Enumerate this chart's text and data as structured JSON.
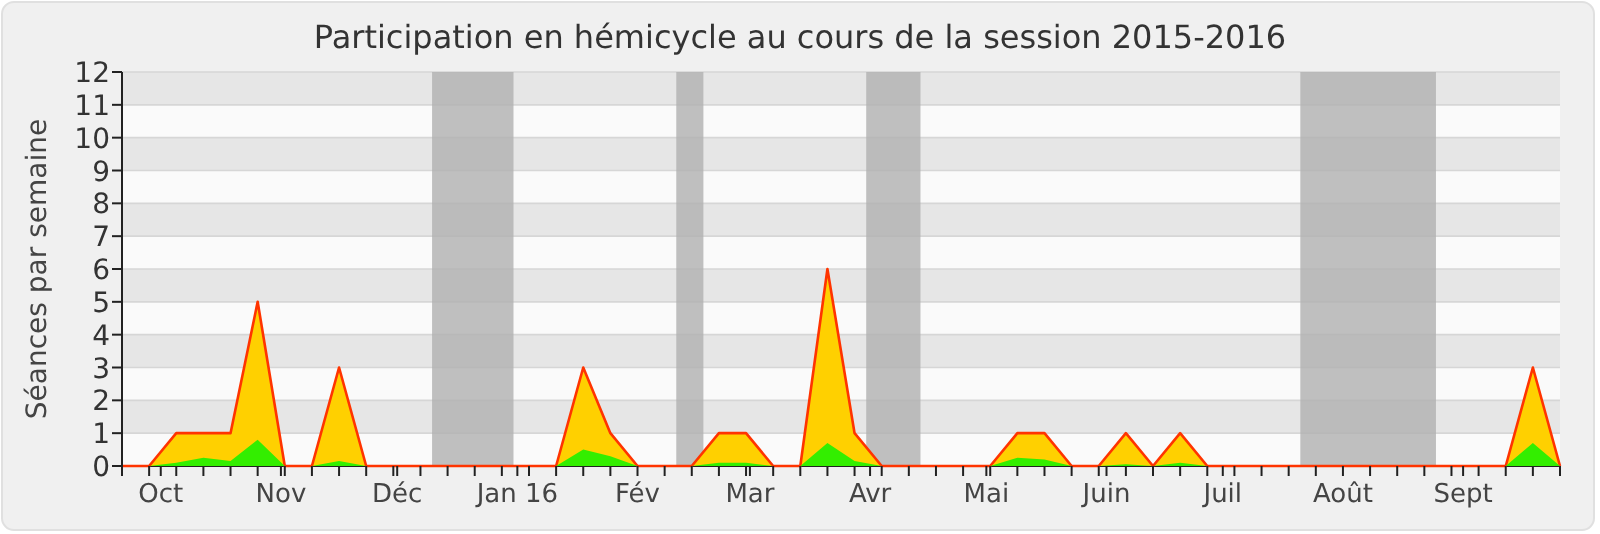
{
  "chart_data": {
    "type": "area",
    "title": "Participation en hémicycle au cours de la session 2015-2016",
    "ylabel": "Séances par semaine",
    "x": [
      "2015-09-21",
      "2015-09-28",
      "2015-10-05",
      "2015-10-12",
      "2015-10-19",
      "2015-10-26",
      "2015-11-02",
      "2015-11-09",
      "2015-11-16",
      "2015-11-23",
      "2015-11-30",
      "2015-12-07",
      "2015-12-14",
      "2015-12-21",
      "2015-12-28",
      "2016-01-04",
      "2016-01-11",
      "2016-01-18",
      "2016-01-25",
      "2016-02-01",
      "2016-02-08",
      "2016-02-15",
      "2016-02-22",
      "2016-02-29",
      "2016-03-07",
      "2016-03-14",
      "2016-03-21",
      "2016-03-28",
      "2016-04-04",
      "2016-04-11",
      "2016-04-18",
      "2016-04-25",
      "2016-05-02",
      "2016-05-09",
      "2016-05-16",
      "2016-05-23",
      "2016-05-30",
      "2016-06-06",
      "2016-06-13",
      "2016-06-20",
      "2016-06-27",
      "2016-07-04",
      "2016-07-11",
      "2016-07-18",
      "2016-07-25",
      "2016-08-01",
      "2016-08-08",
      "2016-08-15",
      "2016-08-22",
      "2016-08-29",
      "2016-09-05",
      "2016-09-12",
      "2016-09-19",
      "2016-09-26"
    ],
    "series": [
      {
        "color": "#ffd000",
        "values": [
          0,
          0,
          1,
          1,
          1,
          5,
          0,
          0,
          3,
          0,
          0,
          0,
          0,
          0,
          0,
          0,
          0,
          3,
          1,
          0,
          0,
          0,
          1,
          1,
          0,
          0,
          6,
          1,
          0,
          0,
          0,
          0,
          0,
          1,
          1,
          0,
          0,
          1,
          0,
          1,
          0,
          0,
          0,
          0,
          0,
          0,
          0,
          0,
          0,
          0,
          0,
          0,
          3,
          0
        ]
      },
      {
        "color": "#33ee00",
        "values": [
          0,
          0,
          0.1,
          0.25,
          0.15,
          0.8,
          0,
          0,
          0.15,
          0,
          0,
          0,
          0,
          0,
          0,
          0,
          0,
          0.5,
          0.3,
          0,
          0,
          0,
          0.1,
          0.1,
          0,
          0,
          0.7,
          0.15,
          0,
          0,
          0,
          0,
          0,
          0.25,
          0.2,
          0,
          0,
          0.05,
          0,
          0.1,
          0,
          0,
          0,
          0,
          0,
          0,
          0,
          0,
          0,
          0,
          0,
          0,
          0.7,
          0
        ]
      }
    ],
    "xlim": [
      "2015-09-21",
      "2016-09-26"
    ],
    "xticks": [
      {
        "value": "2015-09-21",
        "label": null
      },
      {
        "value": "2015-09-28",
        "label": null
      },
      {
        "value": "2015-10-01",
        "label": "Oct"
      },
      {
        "value": "2015-10-05",
        "label": null
      },
      {
        "value": "2015-10-12",
        "label": null
      },
      {
        "value": "2015-10-19",
        "label": null
      },
      {
        "value": "2015-10-26",
        "label": null
      },
      {
        "value": "2015-11-01",
        "label": "Nov"
      },
      {
        "value": "2015-11-02",
        "label": null
      },
      {
        "value": "2015-11-09",
        "label": null
      },
      {
        "value": "2015-11-16",
        "label": null
      },
      {
        "value": "2015-11-23",
        "label": null
      },
      {
        "value": "2015-11-30",
        "label": null
      },
      {
        "value": "2015-12-01",
        "label": "Déc"
      },
      {
        "value": "2015-12-07",
        "label": null
      },
      {
        "value": "2015-12-14",
        "label": null
      },
      {
        "value": "2015-12-21",
        "label": null
      },
      {
        "value": "2015-12-28",
        "label": null
      },
      {
        "value": "2016-01-01",
        "label": "Jan 16"
      },
      {
        "value": "2016-01-04",
        "label": null
      },
      {
        "value": "2016-01-11",
        "label": null
      },
      {
        "value": "2016-01-18",
        "label": null
      },
      {
        "value": "2016-01-25",
        "label": null
      },
      {
        "value": "2016-02-01",
        "label": "Fév"
      },
      {
        "value": "2016-02-08",
        "label": null
      },
      {
        "value": "2016-02-15",
        "label": null
      },
      {
        "value": "2016-02-22",
        "label": null
      },
      {
        "value": "2016-02-29",
        "label": null
      },
      {
        "value": "2016-03-01",
        "label": "Mar"
      },
      {
        "value": "2016-03-07",
        "label": null
      },
      {
        "value": "2016-03-14",
        "label": null
      },
      {
        "value": "2016-03-21",
        "label": null
      },
      {
        "value": "2016-03-28",
        "label": null
      },
      {
        "value": "2016-04-01",
        "label": "Avr"
      },
      {
        "value": "2016-04-04",
        "label": null
      },
      {
        "value": "2016-04-11",
        "label": null
      },
      {
        "value": "2016-04-18",
        "label": null
      },
      {
        "value": "2016-04-25",
        "label": null
      },
      {
        "value": "2016-05-01",
        "label": "Mai"
      },
      {
        "value": "2016-05-02",
        "label": null
      },
      {
        "value": "2016-05-09",
        "label": null
      },
      {
        "value": "2016-05-16",
        "label": null
      },
      {
        "value": "2016-05-23",
        "label": null
      },
      {
        "value": "2016-05-30",
        "label": null
      },
      {
        "value": "2016-06-01",
        "label": "Juin"
      },
      {
        "value": "2016-06-06",
        "label": null
      },
      {
        "value": "2016-06-13",
        "label": null
      },
      {
        "value": "2016-06-20",
        "label": null
      },
      {
        "value": "2016-06-27",
        "label": null
      },
      {
        "value": "2016-07-01",
        "label": "Juil"
      },
      {
        "value": "2016-07-04",
        "label": null
      },
      {
        "value": "2016-07-11",
        "label": null
      },
      {
        "value": "2016-07-18",
        "label": null
      },
      {
        "value": "2016-07-25",
        "label": null
      },
      {
        "value": "2016-08-01",
        "label": "Août"
      },
      {
        "value": "2016-08-08",
        "label": null
      },
      {
        "value": "2016-08-15",
        "label": null
      },
      {
        "value": "2016-08-22",
        "label": null
      },
      {
        "value": "2016-08-29",
        "label": null
      },
      {
        "value": "2016-09-01",
        "label": "Sept"
      },
      {
        "value": "2016-09-05",
        "label": null
      },
      {
        "value": "2016-09-12",
        "label": null
      },
      {
        "value": "2016-09-19",
        "label": null
      },
      {
        "value": "2016-09-26",
        "label": null
      }
    ],
    "ylim": [
      0,
      12
    ],
    "yticks": [
      0,
      1,
      2,
      3,
      4,
      5,
      6,
      7,
      8,
      9,
      10,
      11,
      12
    ],
    "grid": "y",
    "bands": [
      {
        "axis": "x",
        "from": "2015-12-10",
        "to": "2015-12-31",
        "color": "#b0b0b0"
      },
      {
        "axis": "x",
        "from": "2016-02-11",
        "to": "2016-02-18",
        "color": "#b0b0b0"
      },
      {
        "axis": "x",
        "from": "2016-03-31",
        "to": "2016-04-14",
        "color": "#b0b0b0"
      },
      {
        "axis": "x",
        "from": "2016-07-21",
        "to": "2016-08-25",
        "color": "#b0b0b0"
      }
    ]
  }
}
